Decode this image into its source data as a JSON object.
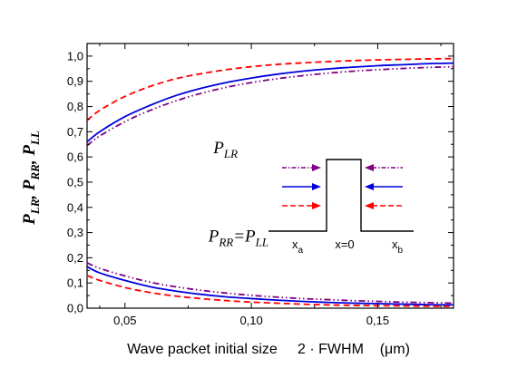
{
  "chart_data": {
    "type": "line",
    "title": "",
    "xlabel": "Wave packet initial size     2 · FWHM    (μm)",
    "ylabel_parts": [
      {
        "main": "P",
        "sub": "LR",
        "sep": ",  "
      },
      {
        "main": "P",
        "sub": "RR",
        "sep": ",  "
      },
      {
        "main": "P",
        "sub": "LL",
        "sep": ""
      }
    ],
    "xlim": [
      0.035,
      0.18
    ],
    "ylim": [
      0.0,
      1.05
    ],
    "x_ticks": [
      0.05,
      0.1,
      0.15
    ],
    "x_tick_labels": [
      "0,05",
      "0,10",
      "0,15"
    ],
    "y_ticks": [
      0.0,
      0.1,
      0.2,
      0.3,
      0.4,
      0.5,
      0.6,
      0.7,
      0.8,
      0.9,
      1.0
    ],
    "y_tick_labels": [
      "0,0",
      "0,1",
      "0,2",
      "0,3",
      "0,4",
      "0,5",
      "0,6",
      "0,7",
      "0,8",
      "0,9",
      "1,0"
    ],
    "grid": false,
    "x": [
      0.035,
      0.04,
      0.05,
      0.06,
      0.07,
      0.08,
      0.09,
      0.1,
      0.11,
      0.12,
      0.13,
      0.14,
      0.15,
      0.16,
      0.17,
      0.18
    ],
    "series": [
      {
        "color": "#0000dd",
        "dash": "solid",
        "values": [
          0.66,
          0.7,
          0.76,
          0.805,
          0.843,
          0.872,
          0.895,
          0.913,
          0.928,
          0.94,
          0.949,
          0.956,
          0.962,
          0.966,
          0.97,
          0.972
        ]
      },
      {
        "color": "#ff0000",
        "dash": "dash",
        "values": [
          0.745,
          0.785,
          0.84,
          0.88,
          0.91,
          0.93,
          0.946,
          0.958,
          0.967,
          0.973,
          0.978,
          0.982,
          0.985,
          0.987,
          0.989,
          0.99
        ]
      },
      {
        "color": "#800080",
        "dash": "dashdotdot",
        "values": [
          0.645,
          0.683,
          0.74,
          0.785,
          0.822,
          0.852,
          0.876,
          0.895,
          0.91,
          0.922,
          0.932,
          0.94,
          0.946,
          0.951,
          0.955,
          0.958
        ]
      },
      {
        "color": "#0000dd",
        "dash": "solid",
        "values": [
          0.165,
          0.14,
          0.11,
          0.085,
          0.068,
          0.055,
          0.045,
          0.038,
          0.032,
          0.027,
          0.023,
          0.02,
          0.018,
          0.016,
          0.014,
          0.013
        ]
      },
      {
        "color": "#ff0000",
        "dash": "dash",
        "values": [
          0.13,
          0.11,
          0.082,
          0.062,
          0.048,
          0.038,
          0.03,
          0.024,
          0.02,
          0.016,
          0.013,
          0.011,
          0.01,
          0.009,
          0.008,
          0.007
        ]
      },
      {
        "color": "#800080",
        "dash": "dashdotdot",
        "values": [
          0.18,
          0.158,
          0.128,
          0.103,
          0.085,
          0.071,
          0.06,
          0.051,
          0.044,
          0.038,
          0.034,
          0.03,
          0.027,
          0.024,
          0.022,
          0.02
        ]
      }
    ],
    "annotations": [
      {
        "main": "P",
        "sub": "LR",
        "rest": "",
        "x": 0.085,
        "y": 0.615
      },
      {
        "main": "P",
        "sub": "RR",
        "rest": "=P",
        "sub2": "LL",
        "x": 0.083,
        "y": 0.265
      }
    ],
    "inset": {
      "labels": [
        {
          "main": "x",
          "sub": "a"
        },
        {
          "main": "x=0",
          "sub": ""
        },
        {
          "main": "x",
          "sub": "b"
        }
      ],
      "arrows": [
        {
          "color": "#800080",
          "dash": "dashdotdot"
        },
        {
          "color": "#0000dd",
          "dash": "solid"
        },
        {
          "color": "#ff0000",
          "dash": "dash"
        }
      ]
    }
  }
}
